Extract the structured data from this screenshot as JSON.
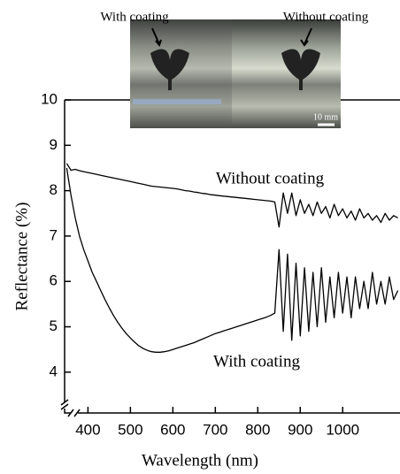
{
  "chart_data": {
    "type": "line",
    "x_label": "Wavelength (nm)",
    "y_label": "Reflectance (%)",
    "xlim": [
      345,
      1135
    ],
    "ylim": [
      3.1,
      10
    ],
    "xticks": [
      400,
      500,
      600,
      700,
      800,
      900,
      1000
    ],
    "yticks": [
      4,
      5,
      6,
      7,
      8,
      9,
      10
    ],
    "grid": false,
    "annotations": [
      "Without coating",
      "With coating"
    ],
    "inset_labels": [
      "With coating",
      "Without coating",
      "10 mm"
    ],
    "x": [
      350,
      360,
      370,
      380,
      390,
      400,
      410,
      420,
      430,
      440,
      450,
      460,
      470,
      480,
      490,
      500,
      510,
      520,
      530,
      540,
      550,
      560,
      570,
      580,
      590,
      600,
      610,
      620,
      630,
      640,
      650,
      660,
      670,
      680,
      690,
      700,
      710,
      720,
      730,
      740,
      750,
      760,
      770,
      780,
      790,
      800,
      810,
      820,
      830,
      840,
      850,
      860,
      870,
      880,
      890,
      900,
      910,
      920,
      930,
      940,
      950,
      960,
      970,
      980,
      990,
      1000,
      1010,
      1020,
      1030,
      1040,
      1050,
      1060,
      1070,
      1080,
      1090,
      1100,
      1110,
      1120,
      1130
    ],
    "series": [
      {
        "name": "Without coating",
        "color": "#000000",
        "values": [
          8.6,
          8.45,
          8.47,
          8.44,
          8.42,
          8.4,
          8.38,
          8.36,
          8.34,
          8.32,
          8.3,
          8.28,
          8.26,
          8.24,
          8.22,
          8.2,
          8.18,
          8.16,
          8.14,
          8.12,
          8.1,
          8.09,
          8.08,
          8.07,
          8.06,
          8.05,
          8.04,
          8.02,
          8.0,
          7.99,
          7.97,
          7.96,
          7.94,
          7.93,
          7.91,
          7.9,
          7.89,
          7.88,
          7.87,
          7.86,
          7.85,
          7.84,
          7.83,
          7.82,
          7.81,
          7.8,
          7.79,
          7.78,
          7.77,
          7.75,
          7.2,
          7.95,
          7.5,
          7.95,
          7.45,
          7.8,
          7.5,
          7.7,
          7.45,
          7.75,
          7.5,
          7.65,
          7.4,
          7.7,
          7.45,
          7.6,
          7.4,
          7.55,
          7.35,
          7.6,
          7.4,
          7.5,
          7.35,
          7.45,
          7.3,
          7.5,
          7.35,
          7.45,
          7.4
        ]
      },
      {
        "name": "With coating",
        "color": "#000000",
        "values": [
          8.5,
          7.9,
          7.4,
          7.0,
          6.7,
          6.45,
          6.2,
          6.0,
          5.8,
          5.6,
          5.42,
          5.25,
          5.1,
          4.97,
          4.85,
          4.75,
          4.66,
          4.58,
          4.52,
          4.48,
          4.45,
          4.44,
          4.44,
          4.45,
          4.47,
          4.5,
          4.53,
          4.56,
          4.59,
          4.62,
          4.65,
          4.69,
          4.73,
          4.77,
          4.81,
          4.85,
          4.88,
          4.91,
          4.94,
          4.97,
          5.0,
          5.03,
          5.06,
          5.09,
          5.12,
          5.15,
          5.18,
          5.21,
          5.25,
          5.3,
          6.7,
          4.9,
          6.6,
          4.7,
          6.4,
          4.8,
          6.3,
          4.9,
          6.2,
          5.0,
          6.3,
          5.1,
          6.1,
          5.2,
          6.2,
          5.3,
          6.1,
          5.2,
          6.1,
          5.4,
          6.0,
          5.4,
          6.2,
          5.5,
          6.0,
          5.5,
          6.1,
          5.6,
          5.8
        ]
      }
    ]
  }
}
